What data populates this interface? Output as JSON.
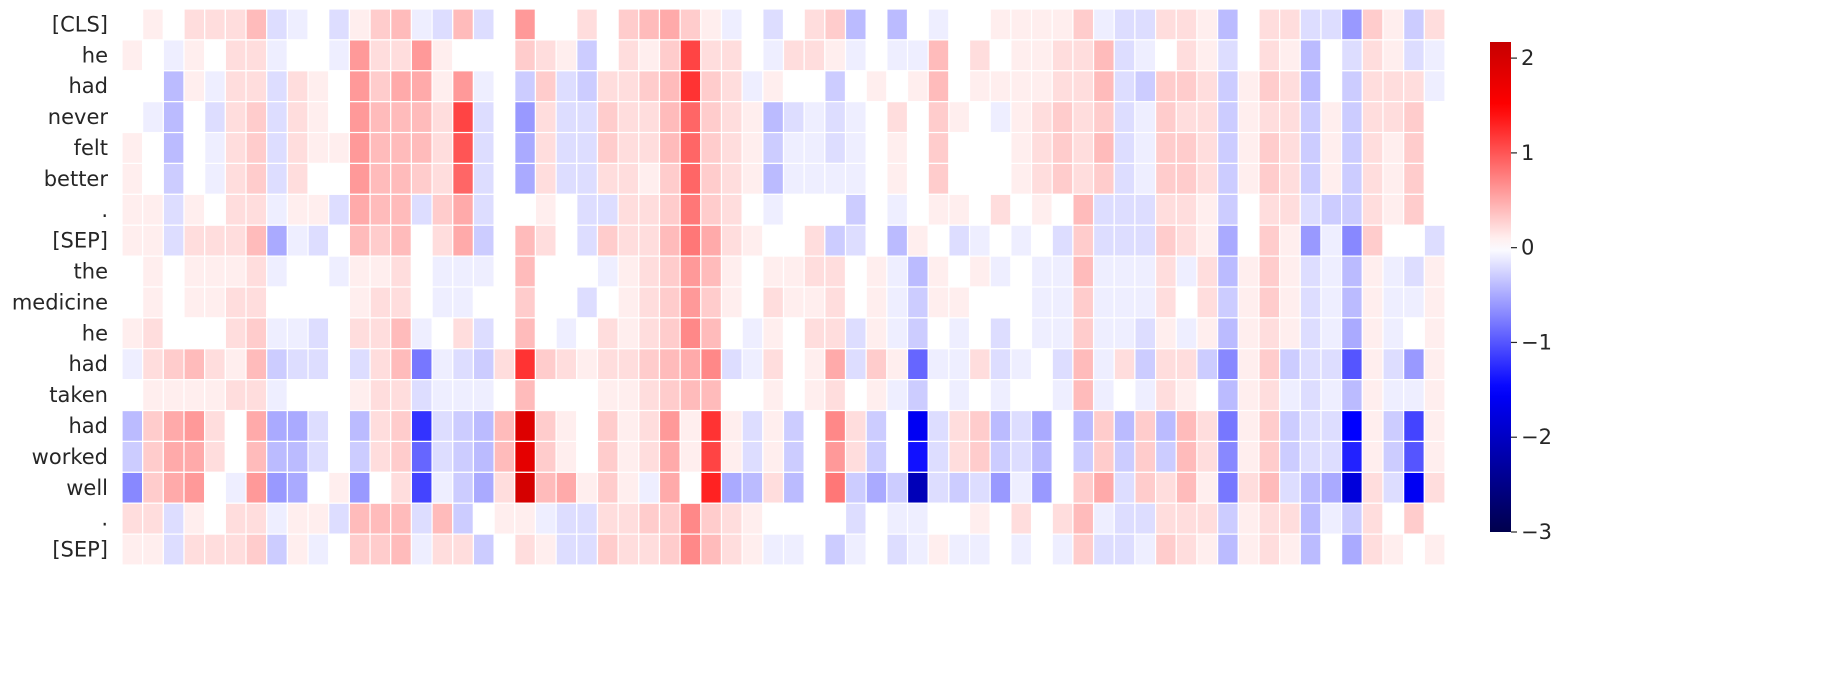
{
  "chart_data": {
    "type": "heatmap",
    "rows": [
      "[CLS]",
      "he",
      "had",
      "never",
      "felt",
      "better",
      ".",
      "[SEP]",
      "the",
      "medicine",
      "he",
      "had",
      "taken",
      "had",
      "worked",
      "well",
      ".",
      "[SEP]"
    ],
    "values": [
      [
        0,
        0.1,
        0,
        0.2,
        0.2,
        0.2,
        0.4,
        -0.2,
        -0.1,
        0,
        -0.2,
        0.1,
        0.3,
        0.4,
        -0.1,
        -0.2,
        0.4,
        -0.2,
        0,
        0.6,
        0,
        0,
        0.2,
        0,
        0.3,
        0.4,
        0.5,
        0.3,
        0.1,
        -0.1,
        0,
        -0.2,
        0,
        0.2,
        0.3,
        -0.4,
        0,
        -0.4,
        0,
        -0.1,
        0,
        0,
        0.1,
        0.1,
        0.1,
        0.1,
        0.3,
        -0.1,
        -0.2,
        -0.2,
        0.2,
        0.2,
        0.1,
        -0.4,
        0,
        0.2,
        0.2,
        -0.2,
        -0.2,
        -0.6,
        0.3,
        0.1,
        -0.3,
        0.2
      ],
      [
        0.1,
        0,
        -0.1,
        0.1,
        0,
        0.2,
        0.2,
        -0.1,
        0,
        0,
        -0.1,
        0.6,
        0.2,
        0.2,
        0.6,
        0.1,
        0,
        0,
        0,
        0.3,
        0.2,
        0.1,
        -0.3,
        0,
        0.2,
        0.1,
        0.3,
        1.1,
        0.2,
        0.2,
        0,
        -0.1,
        0.2,
        0.2,
        0.1,
        -0.1,
        0,
        -0.1,
        -0.1,
        0.4,
        0,
        0.2,
        0,
        0.1,
        0.1,
        0.2,
        0.2,
        0.4,
        -0.2,
        -0.1,
        0,
        0.2,
        0.1,
        -0.2,
        0,
        0.2,
        0.1,
        -0.4,
        0,
        -0.2,
        0.2,
        0.1,
        -0.2,
        -0.1
      ],
      [
        0,
        0,
        -0.4,
        0.1,
        -0.1,
        0.2,
        0.2,
        -0.2,
        0.2,
        0.1,
        0,
        0.6,
        0.3,
        0.5,
        0.5,
        0.1,
        0.6,
        -0.1,
        0,
        -0.3,
        0.3,
        -0.2,
        -0.3,
        0.2,
        0.2,
        0.3,
        0.4,
        1.2,
        0.3,
        0.2,
        -0.1,
        0.1,
        0,
        0,
        -0.3,
        0,
        0.1,
        0,
        0.1,
        0.4,
        0,
        0.1,
        0.1,
        0.1,
        0.1,
        0.2,
        0.2,
        0.4,
        -0.2,
        -0.3,
        0.3,
        0.3,
        0.2,
        -0.3,
        0.1,
        0.3,
        0.2,
        -0.4,
        0,
        -0.3,
        0.2,
        0.2,
        0.2,
        -0.1
      ],
      [
        0,
        -0.1,
        -0.4,
        0,
        -0.2,
        0.2,
        0.3,
        -0.2,
        0.2,
        0.1,
        0,
        0.6,
        0.4,
        0.4,
        0.4,
        0.2,
        1.1,
        -0.2,
        0,
        -0.6,
        0.2,
        -0.2,
        -0.2,
        0.3,
        0.2,
        0.2,
        0.4,
        0.9,
        0.3,
        0.2,
        0.1,
        -0.4,
        -0.2,
        -0.1,
        -0.2,
        -0.1,
        0,
        0.2,
        0,
        0.3,
        0.1,
        0,
        -0.1,
        0.1,
        0.2,
        0.3,
        0.2,
        0.3,
        -0.2,
        -0.1,
        0.3,
        0.2,
        0.2,
        -0.3,
        0.1,
        0.2,
        0.2,
        -0.3,
        0.1,
        -0.3,
        0.2,
        0.2,
        0.3,
        0
      ],
      [
        0.1,
        0,
        -0.4,
        0,
        -0.1,
        0.2,
        0.3,
        -0.2,
        0.2,
        0.1,
        0.1,
        0.6,
        0.4,
        0.4,
        0.4,
        0.2,
        1.0,
        -0.2,
        0,
        -0.5,
        0.2,
        -0.2,
        -0.2,
        0.3,
        0.2,
        0.2,
        0.4,
        0.9,
        0.3,
        0.2,
        0.1,
        -0.3,
        -0.1,
        -0.1,
        -0.2,
        -0.1,
        0,
        0.1,
        0,
        0.3,
        0,
        0,
        0,
        0.1,
        0.2,
        0.3,
        0.2,
        0.4,
        -0.2,
        -0.1,
        0.3,
        0.3,
        0.2,
        -0.3,
        0.1,
        0.3,
        0.2,
        -0.3,
        0.1,
        -0.3,
        0.2,
        0.1,
        0.3,
        0
      ],
      [
        0.1,
        0,
        -0.3,
        0,
        -0.1,
        0.2,
        0.3,
        -0.2,
        0.2,
        0,
        0,
        0.6,
        0.4,
        0.4,
        0.3,
        0.2,
        0.9,
        -0.2,
        0,
        -0.5,
        0.2,
        -0.2,
        -0.2,
        0.2,
        0.2,
        0.1,
        0.3,
        0.9,
        0.3,
        0.2,
        0.1,
        -0.4,
        -0.1,
        -0.1,
        -0.1,
        -0.1,
        0,
        0.1,
        0,
        0.3,
        0,
        0,
        0,
        0.1,
        0.2,
        0.3,
        0.2,
        0.3,
        -0.2,
        -0.1,
        0.3,
        0.3,
        0.2,
        -0.3,
        0.1,
        0.3,
        0.2,
        -0.3,
        0.1,
        -0.3,
        0.2,
        0.1,
        0.3,
        0
      ],
      [
        0.1,
        0.1,
        -0.2,
        0.1,
        0,
        0.2,
        0.2,
        -0.1,
        0.1,
        0.1,
        -0.2,
        0.5,
        0.4,
        0.4,
        -0.2,
        0.3,
        0.5,
        -0.2,
        0,
        0,
        0.1,
        0,
        -0.2,
        -0.2,
        0.2,
        0.2,
        0.3,
        0.8,
        0.3,
        0.2,
        0,
        -0.1,
        0,
        0,
        0,
        -0.3,
        0,
        -0.1,
        0,
        0.1,
        0.1,
        0,
        0.2,
        0,
        0.1,
        0,
        0.4,
        -0.2,
        -0.2,
        -0.2,
        0.2,
        0.2,
        0.1,
        -0.3,
        0,
        0.2,
        0.2,
        -0.2,
        -0.3,
        -0.3,
        0.2,
        0.1,
        0.3,
        0
      ],
      [
        0.1,
        0.1,
        -0.2,
        0.2,
        0.2,
        0.2,
        0.4,
        -0.5,
        -0.1,
        -0.2,
        0,
        0.4,
        0.3,
        0.4,
        0,
        0.2,
        0.5,
        -0.3,
        0,
        0.4,
        0.2,
        0,
        -0.2,
        0.3,
        0.2,
        0.2,
        0.4,
        0.8,
        0.5,
        0.2,
        0.1,
        0,
        0,
        0.2,
        -0.3,
        -0.2,
        0,
        -0.4,
        0.1,
        0,
        -0.2,
        -0.1,
        0,
        -0.1,
        0,
        -0.2,
        0.3,
        -0.2,
        -0.2,
        -0.2,
        0.3,
        0.2,
        0.1,
        -0.5,
        0,
        0.3,
        0.1,
        -0.6,
        -0.1,
        -0.7,
        0.3,
        0,
        0,
        -0.2
      ],
      [
        0,
        0.1,
        0,
        0.1,
        0.1,
        0.1,
        0.2,
        -0.1,
        0,
        0,
        -0.1,
        0.1,
        0.1,
        0.2,
        0,
        -0.1,
        -0.1,
        -0.1,
        0,
        0.4,
        0,
        0,
        0,
        -0.1,
        0.1,
        0.2,
        0.3,
        0.6,
        0.4,
        0.1,
        0,
        0.1,
        0.1,
        0.2,
        0.2,
        0,
        0.1,
        -0.1,
        -0.4,
        0.1,
        0,
        0.1,
        -0.1,
        0,
        -0.1,
        -0.1,
        0.4,
        -0.1,
        -0.1,
        -0.1,
        0.2,
        -0.1,
        0.2,
        -0.4,
        0.1,
        0.3,
        0.1,
        -0.2,
        -0.1,
        -0.4,
        0.1,
        -0.1,
        -0.2,
        0.1
      ],
      [
        0,
        0.1,
        0,
        0.1,
        0.1,
        0.2,
        0.2,
        0,
        0,
        0,
        0,
        0.1,
        0.2,
        0.2,
        0,
        -0.1,
        -0.1,
        0,
        0,
        0.3,
        0,
        0,
        -0.2,
        0,
        0.1,
        0.2,
        0.3,
        0.6,
        0.3,
        0.1,
        0,
        0.2,
        0.1,
        0.1,
        0.2,
        0,
        0.1,
        -0.1,
        -0.3,
        0.1,
        0.1,
        0,
        0,
        0,
        -0.1,
        -0.1,
        0.3,
        -0.1,
        -0.1,
        -0.1,
        0.2,
        0,
        0.2,
        -0.3,
        0.1,
        0.3,
        0.1,
        -0.2,
        -0.1,
        -0.4,
        0.1,
        -0.1,
        -0.1,
        0.1
      ],
      [
        0.1,
        0.2,
        0,
        0,
        0,
        0.2,
        0.3,
        -0.1,
        -0.1,
        -0.2,
        0,
        0.2,
        0.2,
        0.4,
        -0.1,
        0,
        0.2,
        -0.2,
        0,
        0.4,
        0,
        -0.1,
        0,
        0.2,
        0.1,
        0.2,
        0.3,
        0.7,
        0.4,
        0,
        -0.1,
        0.1,
        0,
        0.2,
        0.2,
        -0.2,
        0.1,
        -0.1,
        -0.3,
        0,
        -0.1,
        0,
        -0.2,
        0,
        -0.1,
        -0.1,
        0.3,
        -0.1,
        -0.1,
        -0.2,
        0.1,
        -0.1,
        0.1,
        -0.4,
        0.1,
        0.2,
        0.1,
        -0.2,
        -0.1,
        -0.5,
        0.1,
        -0.1,
        0,
        0.1
      ],
      [
        -0.1,
        0.2,
        0.3,
        0.4,
        0.2,
        0.1,
        0.4,
        -0.3,
        -0.2,
        -0.2,
        0,
        -0.2,
        0.2,
        0.4,
        -0.8,
        -0.1,
        -0.2,
        -0.3,
        0.2,
        1.2,
        0.3,
        0.2,
        0.1,
        0.2,
        0.2,
        0.3,
        0.4,
        0.5,
        0.7,
        -0.2,
        -0.1,
        0.2,
        0,
        0.1,
        0.5,
        -0.2,
        0.3,
        0.1,
        -0.9,
        -0.1,
        -0.1,
        0.2,
        -0.2,
        -0.1,
        0,
        -0.2,
        0.4,
        -0.1,
        0.2,
        -0.3,
        0.2,
        0.2,
        -0.3,
        -0.7,
        0.1,
        0.3,
        -0.3,
        -0.2,
        -0.2,
        -1.0,
        0.1,
        -0.2,
        -0.6,
        0.1
      ],
      [
        0,
        0.1,
        0.1,
        0.1,
        0.1,
        0.2,
        0.2,
        -0.1,
        0,
        0,
        0,
        0.1,
        0.2,
        0.2,
        -0.2,
        -0.1,
        -0.1,
        -0.1,
        0,
        0.4,
        0,
        0,
        0,
        0.1,
        0.1,
        0.2,
        0.3,
        0.4,
        0.4,
        0,
        0,
        0.1,
        0,
        0.1,
        0.2,
        0,
        0.1,
        -0.1,
        -0.3,
        0,
        -0.1,
        0,
        -0.1,
        0,
        0,
        -0.1,
        0.4,
        -0.1,
        0,
        -0.1,
        0.2,
        0.1,
        0,
        -0.4,
        0.1,
        0.2,
        -0.1,
        -0.2,
        -0.1,
        -0.4,
        0.1,
        -0.1,
        -0.1,
        0.1
      ],
      [
        -0.4,
        0.3,
        0.5,
        0.6,
        0.2,
        0,
        0.5,
        -0.5,
        -0.5,
        -0.2,
        0,
        -0.4,
        0.2,
        0.3,
        -1.2,
        -0.2,
        -0.3,
        -0.4,
        0.4,
        1.9,
        0.3,
        0.1,
        0,
        0.3,
        0.1,
        0.2,
        0.6,
        0.1,
        1.2,
        0.1,
        -0.2,
        0.1,
        -0.3,
        0,
        0.7,
        0.2,
        -0.3,
        0,
        -1.6,
        -0.2,
        0.2,
        0.3,
        -0.4,
        -0.2,
        -0.5,
        0,
        -0.4,
        0.3,
        -0.4,
        0.3,
        -0.4,
        0.4,
        0.2,
        -0.8,
        0.1,
        0.3,
        -0.3,
        -0.2,
        -0.2,
        -1.5,
        0.1,
        -0.3,
        -1.1,
        0.1
      ],
      [
        -0.3,
        0.3,
        0.5,
        0.5,
        0.2,
        0,
        0.4,
        -0.4,
        -0.4,
        -0.2,
        0,
        -0.3,
        0.2,
        0.3,
        -0.9,
        -0.2,
        -0.3,
        -0.4,
        0.4,
        1.8,
        0.3,
        0.1,
        0,
        0.3,
        0.1,
        0.2,
        0.5,
        0.1,
        1.1,
        0.1,
        -0.2,
        0.1,
        -0.3,
        0,
        0.6,
        0.2,
        -0.3,
        0,
        -1.4,
        -0.2,
        0.2,
        0.3,
        -0.3,
        -0.2,
        -0.4,
        0,
        -0.3,
        0.3,
        -0.3,
        0.3,
        -0.3,
        0.4,
        0.2,
        -0.7,
        0.1,
        0.3,
        -0.3,
        -0.2,
        -0.2,
        -1.3,
        0.1,
        -0.3,
        -1.0,
        0.1
      ],
      [
        -0.7,
        0.3,
        0.5,
        0.6,
        0,
        -0.1,
        0.6,
        -0.6,
        -0.5,
        0,
        0.1,
        -0.6,
        0,
        0.2,
        -1.1,
        -0.1,
        -0.3,
        -0.5,
        0.2,
        2.0,
        0.4,
        0.5,
        0.1,
        0.3,
        0.1,
        -0.1,
        0.5,
        0,
        1.3,
        -0.5,
        -0.4,
        0.2,
        -0.4,
        0,
        0.8,
        -0.3,
        -0.5,
        -0.3,
        -2.1,
        -0.2,
        -0.3,
        -0.2,
        -0.6,
        -0.1,
        -0.6,
        0,
        0.3,
        0.5,
        -0.2,
        0.3,
        0.2,
        0.4,
        0.1,
        -0.8,
        0.2,
        0.4,
        -0.2,
        -0.4,
        -0.5,
        -1.8,
        0.2,
        -0.2,
        -1.6,
        0.2
      ],
      [
        0.2,
        0.2,
        -0.2,
        0.1,
        0,
        0.2,
        0.2,
        -0.1,
        0.1,
        0.1,
        -0.2,
        0.4,
        0.4,
        0.4,
        -0.2,
        0.4,
        -0.3,
        0,
        0.1,
        0.1,
        -0.1,
        -0.2,
        -0.2,
        0.2,
        0.2,
        0.3,
        0.3,
        0.7,
        0.3,
        0.2,
        0.1,
        0,
        0,
        0,
        0,
        -0.2,
        0,
        -0.1,
        -0.1,
        0,
        0,
        0.1,
        0,
        0.2,
        0,
        0.2,
        0.4,
        -0.1,
        -0.2,
        -0.2,
        0.2,
        0.2,
        0.2,
        -0.3,
        0.1,
        0.2,
        0.2,
        -0.4,
        -0.1,
        -0.3,
        0.2,
        0,
        0.3,
        0
      ],
      [
        0.1,
        0.1,
        -0.2,
        0.2,
        0.2,
        0.2,
        0.3,
        -0.3,
        0.1,
        -0.1,
        0,
        0.3,
        0.3,
        0.4,
        -0.1,
        0.2,
        0.2,
        -0.3,
        0,
        0.2,
        0.1,
        -0.2,
        -0.2,
        0.3,
        0.2,
        0.2,
        0.3,
        0.7,
        0.4,
        0.2,
        0.1,
        -0.1,
        -0.1,
        0,
        -0.3,
        -0.1,
        0,
        -0.2,
        -0.1,
        0.1,
        -0.1,
        -0.1,
        0,
        -0.1,
        0,
        -0.1,
        0.3,
        -0.2,
        -0.2,
        -0.1,
        0.3,
        0.2,
        0.1,
        -0.4,
        0.1,
        0.2,
        0.1,
        -0.4,
        0,
        -0.5,
        0.2,
        0.1,
        0,
        0.1
      ]
    ],
    "cmap": "seismic",
    "center": 0,
    "colorbar": {
      "lim": [
        -3,
        2.17
      ],
      "ticks": [
        {
          "value": -3,
          "label": "−3"
        },
        {
          "value": -2,
          "label": "−2"
        },
        {
          "value": -1,
          "label": "−1"
        },
        0,
        1,
        2
      ]
    }
  }
}
